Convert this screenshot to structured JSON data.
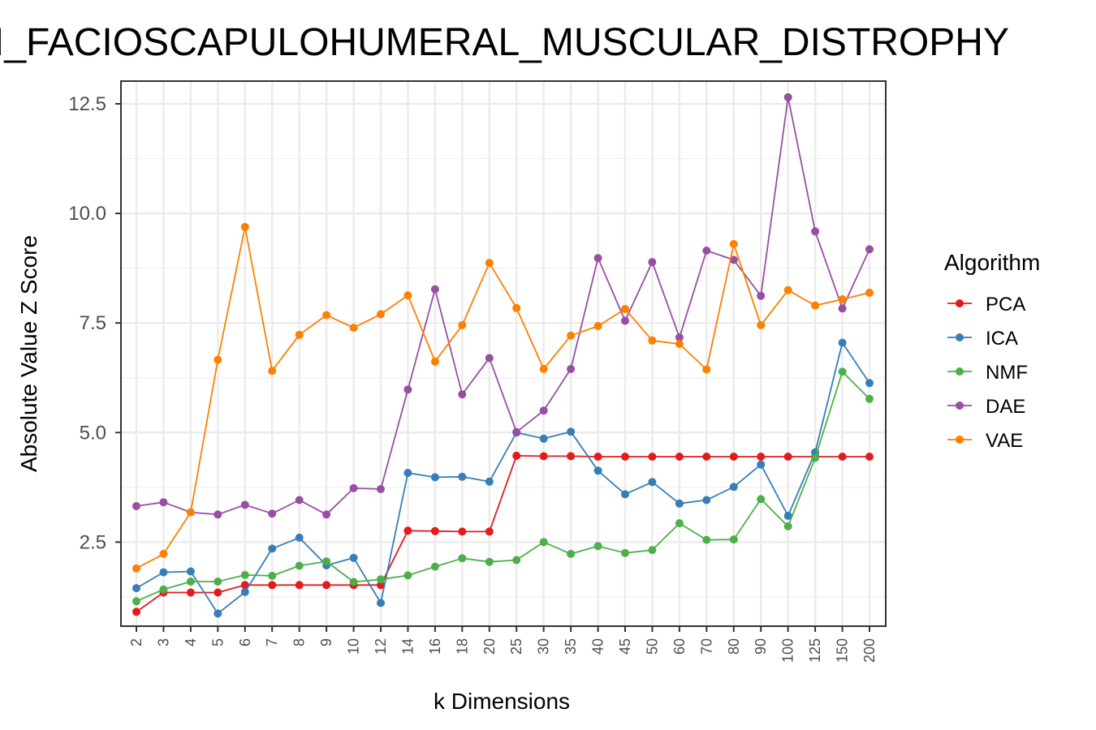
{
  "chart_data": {
    "type": "line",
    "title": "I_FACIOSCAPULOHUMERAL_MUSCULAR_DISTROPHY",
    "xlabel": "k Dimensions",
    "ylabel": "Absolute Value Z Score",
    "ylim": [
      0.6,
      13.0
    ],
    "yticks": [
      2.5,
      5.0,
      7.5,
      10.0,
      12.5
    ],
    "ytick_labels": [
      "2.5",
      "5.0",
      "7.5",
      "10.0",
      "12.5"
    ],
    "grid": true,
    "legend_position": "right",
    "legend_title": "Algorithm",
    "categories": [
      "2",
      "3",
      "4",
      "5",
      "6",
      "7",
      "8",
      "9",
      "10",
      "12",
      "14",
      "16",
      "18",
      "20",
      "25",
      "30",
      "35",
      "40",
      "45",
      "50",
      "60",
      "70",
      "80",
      "90",
      "100",
      "125",
      "150",
      "200"
    ],
    "series": [
      {
        "name": "PCA",
        "color": "#e41a1c",
        "values": [
          0.91,
          1.35,
          1.35,
          1.35,
          1.52,
          1.52,
          1.52,
          1.52,
          1.52,
          1.52,
          2.76,
          2.75,
          2.74,
          2.74,
          4.47,
          4.46,
          4.46,
          4.45,
          4.45,
          4.45,
          4.45,
          4.45,
          4.45,
          4.45,
          4.45,
          4.45,
          4.45,
          4.45
        ]
      },
      {
        "name": "ICA",
        "color": "#377eb8",
        "values": [
          1.45,
          1.81,
          1.83,
          0.87,
          1.36,
          2.35,
          2.6,
          1.97,
          2.14,
          1.11,
          4.08,
          3.98,
          3.99,
          3.88,
          5.0,
          4.86,
          5.02,
          4.13,
          3.59,
          3.87,
          3.38,
          3.46,
          3.76,
          4.27,
          3.1,
          4.55,
          7.05,
          6.13
        ]
      },
      {
        "name": "NMF",
        "color": "#4daf4a",
        "values": [
          1.15,
          1.42,
          1.6,
          1.6,
          1.75,
          1.73,
          1.96,
          2.06,
          1.59,
          1.65,
          1.74,
          1.94,
          2.13,
          2.05,
          2.09,
          2.5,
          2.23,
          2.41,
          2.25,
          2.32,
          2.93,
          2.55,
          2.56,
          3.48,
          2.86,
          4.42,
          6.39,
          5.77
        ]
      },
      {
        "name": "DAE",
        "color": "#984ea3",
        "values": [
          3.32,
          3.41,
          3.18,
          3.13,
          3.35,
          3.15,
          3.46,
          3.13,
          3.73,
          3.71,
          5.98,
          8.27,
          5.87,
          6.7,
          5.01,
          5.5,
          6.45,
          8.98,
          7.55,
          8.89,
          7.17,
          9.15,
          8.94,
          8.12,
          12.65,
          9.59,
          7.83,
          9.18
        ]
      },
      {
        "name": "VAE",
        "color": "#ff7f00",
        "values": [
          1.9,
          2.23,
          3.18,
          6.66,
          9.69,
          6.41,
          7.23,
          7.68,
          7.39,
          7.7,
          8.13,
          6.62,
          7.45,
          8.87,
          7.84,
          6.45,
          7.21,
          7.43,
          7.82,
          7.1,
          7.02,
          6.44,
          9.3,
          7.45,
          8.25,
          7.9,
          8.04,
          8.19
        ]
      }
    ]
  }
}
